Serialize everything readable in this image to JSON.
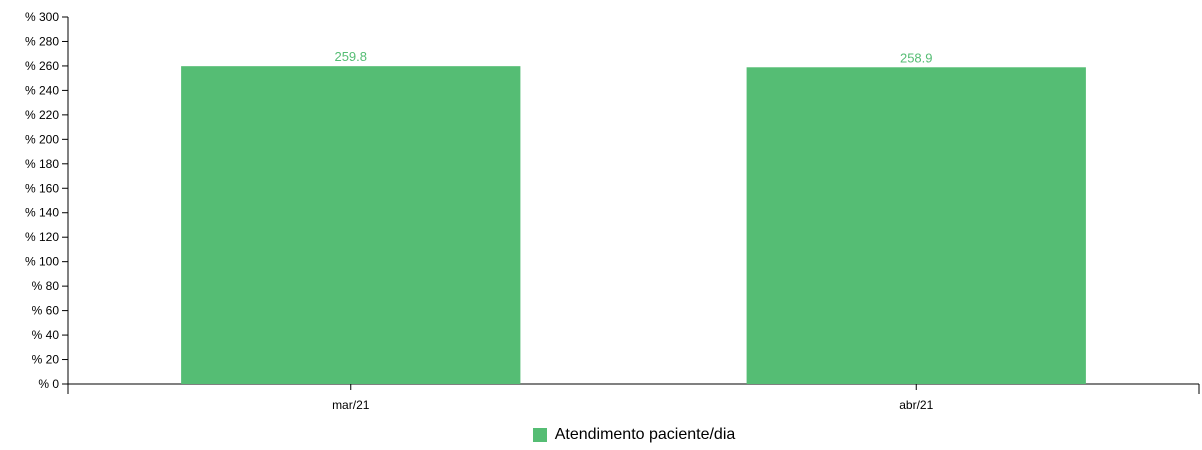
{
  "chart_data": {
    "type": "bar",
    "title": "",
    "xlabel": "",
    "ylabel": "",
    "categories": [
      "mar/21",
      "abr/21"
    ],
    "series": [
      {
        "name": "Atendimento paciente/dia",
        "values": [
          259.8,
          258.9
        ],
        "color": "#55bd74"
      }
    ],
    "data_labels": [
      "259.8",
      "258.9"
    ],
    "ylim": [
      0,
      300
    ],
    "y_ticks": [
      0,
      20,
      40,
      60,
      80,
      100,
      120,
      140,
      160,
      180,
      200,
      220,
      240,
      260,
      280,
      300
    ],
    "y_tick_prefix": "% ",
    "grid": false,
    "legend_position": "bottom-center"
  },
  "legend": {
    "label": "Atendimento paciente/dia"
  }
}
